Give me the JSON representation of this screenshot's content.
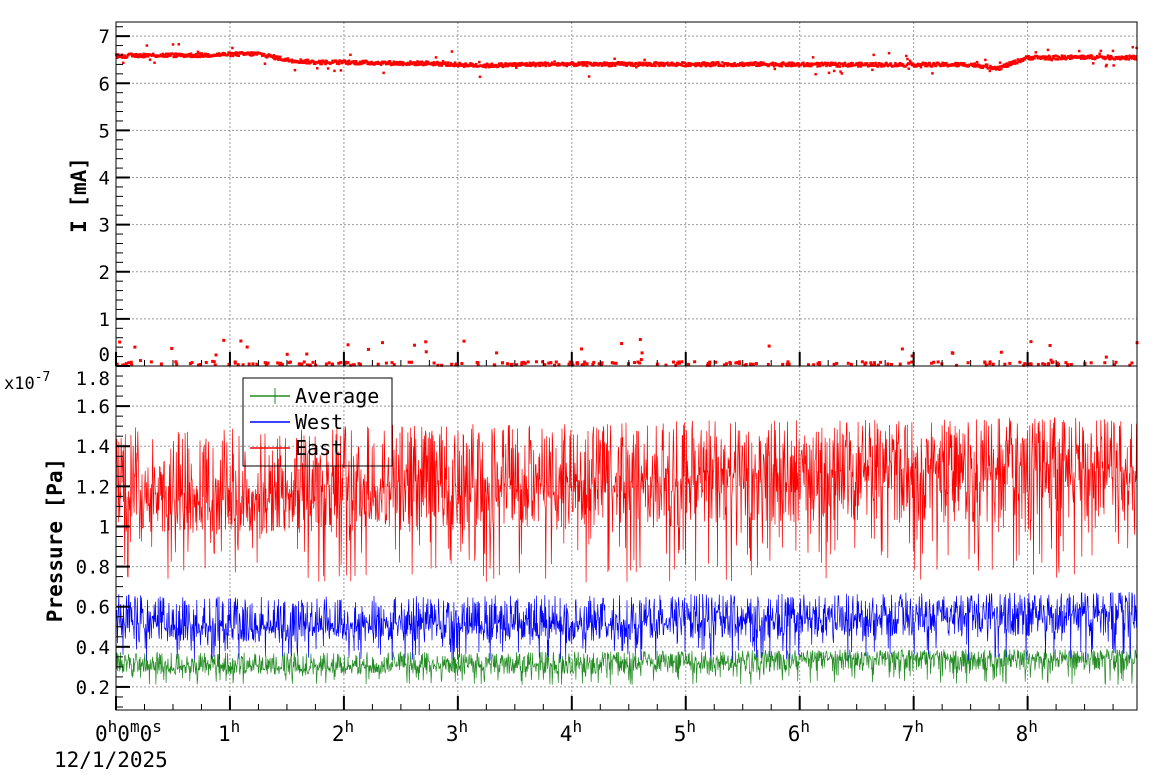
{
  "chart_data": [
    {
      "type": "scatter",
      "ylabel": "I [mA]",
      "ylim": [
        0,
        7.3
      ],
      "xlim_hours": [
        0,
        8.96
      ],
      "yticks": [
        "0",
        "1",
        "2",
        "3",
        "4",
        "5",
        "6",
        "7"
      ],
      "grid": true,
      "color": "#ff0000",
      "series": [
        {
          "x_hours": [
            0,
            0.25,
            0.5,
            0.75,
            1,
            1.25,
            1.5,
            1.75,
            2,
            2.25,
            2.5,
            2.75,
            3,
            3.25,
            3.5,
            3.75,
            4,
            4.25,
            4.5,
            4.75,
            5,
            5.25,
            5.5,
            5.75,
            6,
            6.25,
            6.5,
            6.75,
            7,
            7.25,
            7.5,
            7.75,
            8,
            8.25,
            8.5,
            8.75,
            9
          ],
          "mean": [
            6.58,
            6.6,
            6.6,
            6.6,
            6.62,
            6.63,
            6.5,
            6.45,
            6.45,
            6.44,
            6.43,
            6.43,
            6.4,
            6.38,
            6.4,
            6.41,
            6.41,
            6.41,
            6.41,
            6.41,
            6.41,
            6.41,
            6.41,
            6.41,
            6.4,
            6.4,
            6.4,
            6.4,
            6.4,
            6.4,
            6.4,
            6.33,
            6.55,
            6.55,
            6.56,
            6.55,
            6.55
          ],
          "low_outlier_range": [
            0,
            0.6
          ]
        }
      ]
    },
    {
      "type": "line",
      "ylabel": "Pressure [Pa]",
      "yscale_label": "x10",
      "yscale_exp": "-7",
      "ylim": [
        0.085,
        1.8
      ],
      "yticks": [
        "0.2",
        "0.4",
        "0.6",
        "0.8",
        "1",
        "1.2",
        "1.4",
        "1.6",
        "1.8"
      ],
      "xticks": [
        "0",
        "1",
        "2",
        "3",
        "4",
        "5",
        "6",
        "7",
        "8"
      ],
      "x_first_label": {
        "h": "0",
        "m": "0",
        "s": "0"
      },
      "x_unit_h": "h",
      "x_unit_m": "m",
      "x_unit_s": "s",
      "x_date": "12/1/2025",
      "grid": true,
      "legend": "top-left",
      "x_hours": [
        0,
        0.5,
        1,
        1.5,
        2,
        2.5,
        3,
        3.5,
        4,
        4.5,
        5,
        5.5,
        6,
        6.5,
        7,
        7.5,
        8,
        8.5,
        8.96
      ],
      "series": [
        {
          "name": "Average",
          "color": "#228b22",
          "mean": [
            0.33,
            0.31,
            0.31,
            0.31,
            0.31,
            0.32,
            0.32,
            0.32,
            0.32,
            0.33,
            0.33,
            0.34,
            0.34,
            0.35,
            0.35,
            0.35,
            0.35,
            0.35,
            0.35
          ],
          "min": 0.21,
          "max": 0.41
        },
        {
          "name": "West",
          "color": "#0000ff",
          "mean": [
            0.55,
            0.52,
            0.52,
            0.52,
            0.52,
            0.53,
            0.53,
            0.54,
            0.53,
            0.54,
            0.55,
            0.56,
            0.56,
            0.56,
            0.57,
            0.57,
            0.58,
            0.58,
            0.58
          ],
          "min": 0.33,
          "max": 0.73
        },
        {
          "name": "East",
          "color": "#ff0000",
          "mean": [
            1.22,
            1.18,
            1.2,
            1.2,
            1.22,
            1.24,
            1.24,
            1.26,
            1.24,
            1.26,
            1.28,
            1.3,
            1.3,
            1.3,
            1.32,
            1.32,
            1.33,
            1.33,
            1.3
          ],
          "min": 0.72,
          "max": 1.67
        }
      ]
    }
  ]
}
